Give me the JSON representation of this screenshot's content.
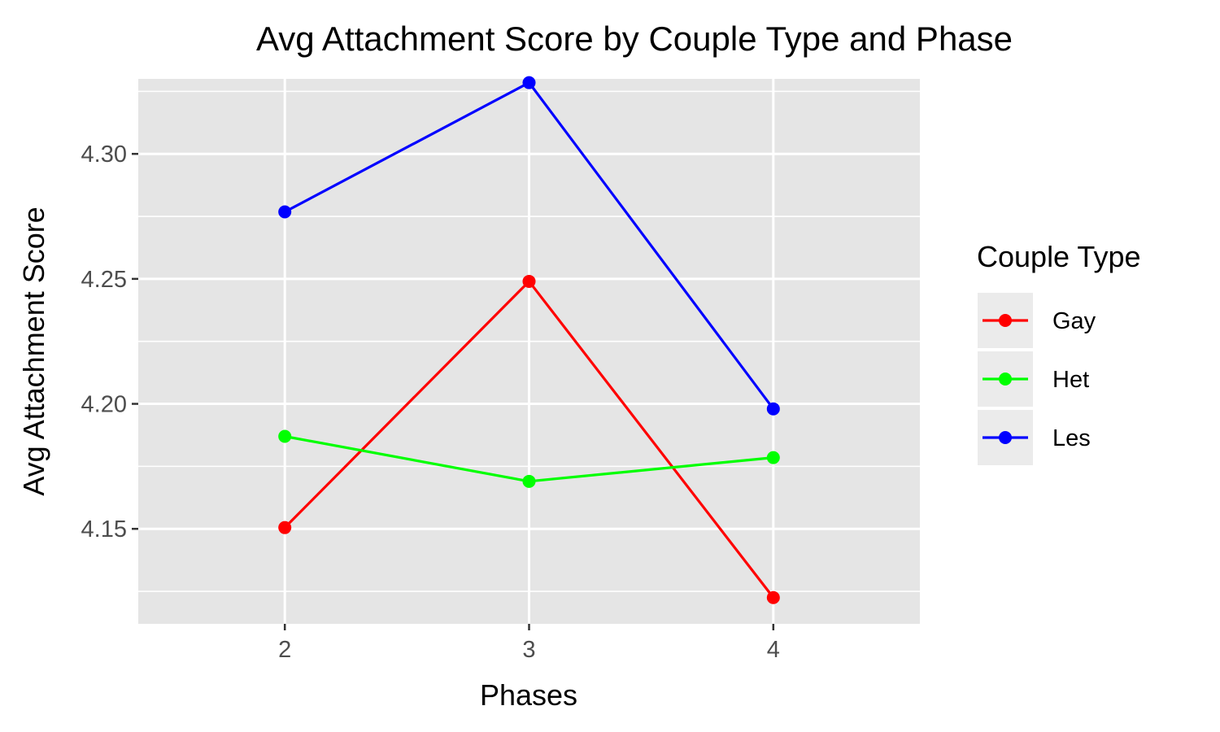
{
  "chart_data": {
    "type": "line",
    "title": "Avg Attachment Score by Couple Type and Phase",
    "xlabel": "Phases",
    "ylabel": "Avg Attachment Score",
    "x": [
      2,
      3,
      4
    ],
    "x_tick_labels": [
      "2",
      "3",
      "4"
    ],
    "xlim": [
      1.4,
      4.6
    ],
    "ylim": [
      4.112,
      4.33
    ],
    "y_ticks": [
      4.15,
      4.2,
      4.25,
      4.3
    ],
    "y_tick_labels": [
      "4.15",
      "4.20",
      "4.25",
      "4.30"
    ],
    "grid": true,
    "legend": {
      "title": "Couple Type",
      "position": "right"
    },
    "panel_color": "#e5e5e5",
    "series": [
      {
        "name": "Gay",
        "color": "#ff0000",
        "values": [
          4.1505,
          4.249,
          4.1225
        ]
      },
      {
        "name": "Het",
        "color": "#00ff00",
        "values": [
          4.187,
          4.169,
          4.1785
        ]
      },
      {
        "name": "Les",
        "color": "#0000ff",
        "values": [
          4.2768,
          4.3285,
          4.198
        ]
      }
    ]
  }
}
